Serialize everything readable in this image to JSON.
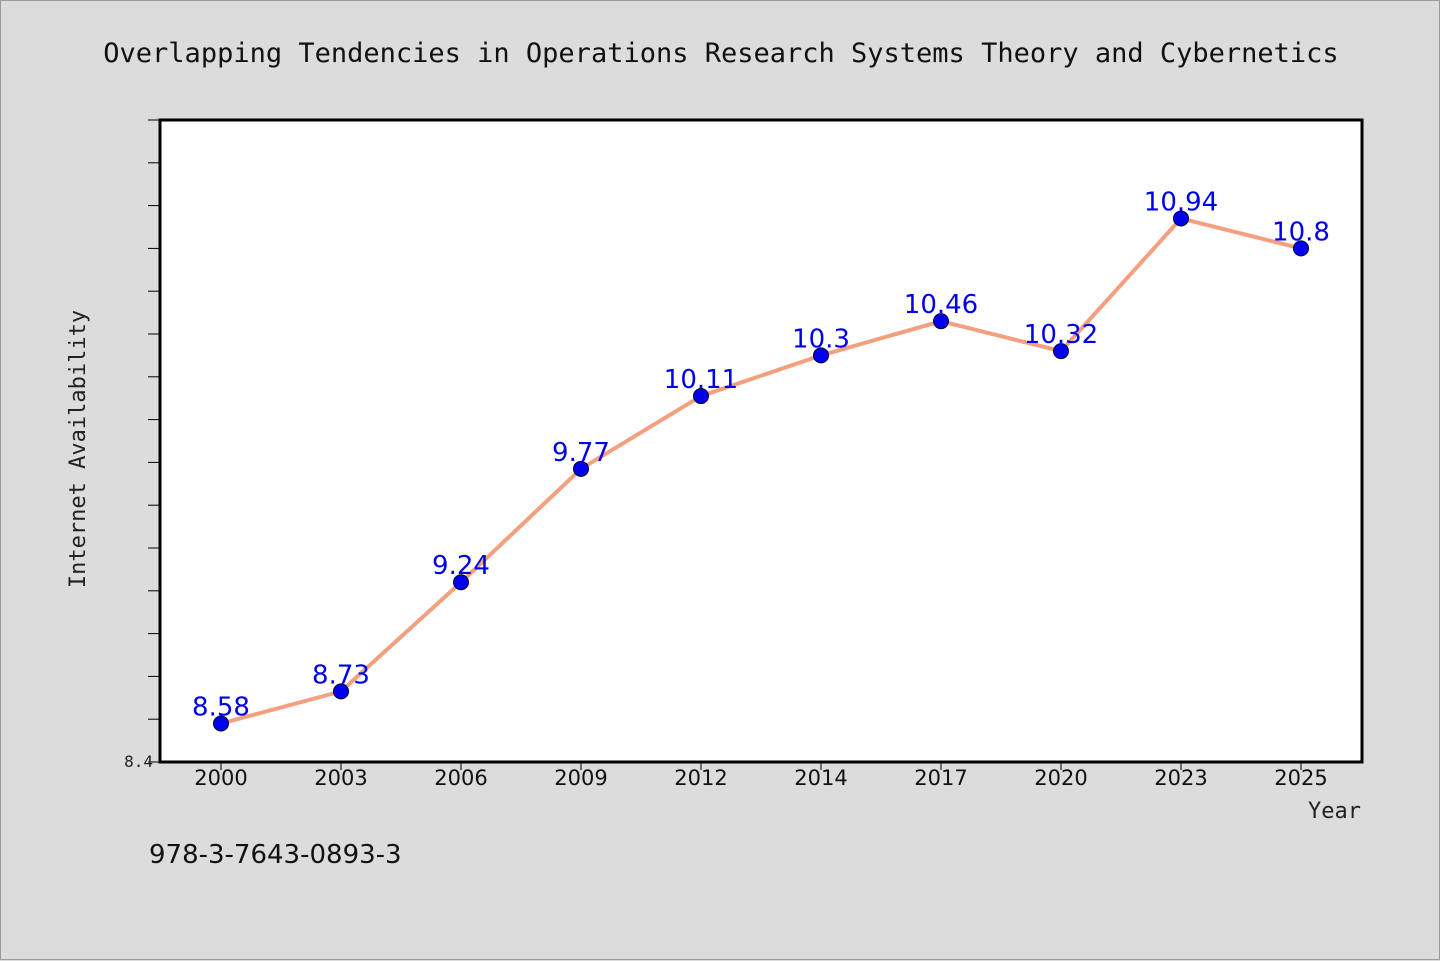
{
  "chart_data": {
    "type": "line",
    "title": "Overlapping Tendencies in Operations Research Systems Theory and Cybernetics",
    "xlabel": "Year",
    "ylabel": "Internet Availability",
    "categories": [
      "2000",
      "2003",
      "2006",
      "2009",
      "2012",
      "2014",
      "2017",
      "2020",
      "2023",
      "2025"
    ],
    "series": [
      {
        "values": [
          8.58,
          8.73,
          9.24,
          9.77,
          10.11,
          10.3,
          10.46,
          10.32,
          10.94,
          10.8
        ],
        "labels": [
          "8.58",
          "8.73",
          "9.24",
          "9.77",
          "10.11",
          "10.3",
          "10.46",
          "10.32",
          "10.94",
          "10.8"
        ]
      }
    ],
    "ylim": [
      8.4,
      11.4
    ],
    "y_tick_labels": [
      "8.4"
    ],
    "grid": false,
    "line_color": "#f4a07f",
    "marker_color": "#0000ee",
    "label_color": "#0000ee"
  },
  "footer": {
    "isbn": "978-3-7643-0893-3"
  }
}
